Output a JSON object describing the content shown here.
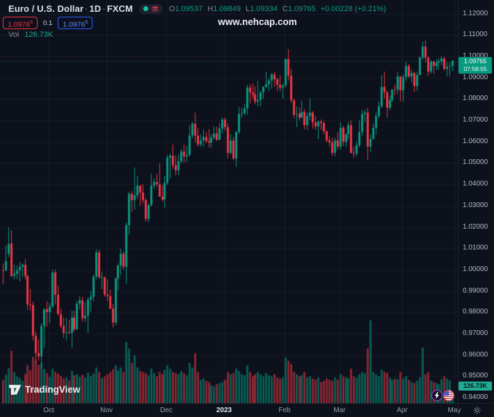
{
  "header": {
    "symbol_title": "Euro / U.S. Dollar",
    "separator": "·",
    "interval": "1D",
    "exchange": "FXCM",
    "ohlc": {
      "o_label": "O",
      "o": "1.09537",
      "h_label": "H",
      "h": "1.09849",
      "l_label": "L",
      "l": "1.09334",
      "c_label": "C",
      "c": "1.09765",
      "change": "+0.00228 (+0.21%)"
    },
    "sell_price": "1.0976",
    "sell_sup": "5",
    "spread": "0.1",
    "buy_price": "1.0976",
    "buy_sup": "6",
    "vol_label": "Vol",
    "vol_value": "126.73K"
  },
  "watermark": "www.nehcap.com",
  "logo_text": "TradingView",
  "axis": {
    "last_price": "1.09765",
    "countdown": "07:58:55",
    "volume_badge": "126.73K"
  },
  "colors": {
    "background": "#0d111c",
    "up": "#089981",
    "down": "#f23645",
    "buy_blue": "#2962ff",
    "sell_red": "#f23645",
    "grid": "rgba(140,150,170,0.08)",
    "badge_teal": "#089981",
    "vol_badge_teal": "#22ab94"
  },
  "chart_data": {
    "type": "candlestick",
    "title": "Euro / U.S. Dollar",
    "symbol": "EURUSD",
    "interval": "1D",
    "exchange": "FXCM",
    "legend_position": "top-left",
    "grid": true,
    "y_axis": {
      "min": 0.94,
      "max": 1.12,
      "step": 0.01,
      "format_decimals": 5
    },
    "x_axis": {
      "labels": [
        {
          "label": "Oct",
          "index": 17,
          "strong": false
        },
        {
          "label": "Nov",
          "index": 38,
          "strong": false
        },
        {
          "label": "Dec",
          "index": 60,
          "strong": false
        },
        {
          "label": "2023",
          "index": 81,
          "strong": true
        },
        {
          "label": "Feb",
          "index": 103,
          "strong": false
        },
        {
          "label": "Mar",
          "index": 123,
          "strong": false
        },
        {
          "label": "Apr",
          "index": 146,
          "strong": false
        },
        {
          "label": "May",
          "index": 165,
          "strong": false
        }
      ]
    },
    "current": {
      "price": 1.09765,
      "countdown": "07:58:55",
      "volume_k": 126.73
    },
    "volume_unit": "K",
    "candles_format": [
      "open",
      "high",
      "low",
      "close",
      "volume_k"
    ],
    "candles": [
      [
        0.9998,
        1.0029,
        0.993,
        0.9995,
        420
      ],
      [
        0.9995,
        1.0113,
        0.9993,
        1.004,
        510
      ],
      [
        1.0075,
        1.0198,
        1.0059,
        1.012,
        630
      ],
      [
        1.0122,
        1.0187,
        0.9964,
        0.997,
        940
      ],
      [
        0.997,
        1.0023,
        0.9955,
        0.9979,
        560
      ],
      [
        0.9979,
        1.0018,
        0.9954,
        0.9998,
        480
      ],
      [
        0.9998,
        1.0036,
        0.9944,
        1.0014,
        450
      ],
      [
        1.0014,
        1.0029,
        0.9964,
        1.0023,
        400
      ],
      [
        1.0023,
        1.005,
        0.9954,
        0.997,
        520
      ],
      [
        0.997,
        0.9975,
        0.9812,
        0.9838,
        680
      ],
      [
        0.9838,
        0.9907,
        0.9807,
        0.9835,
        590
      ],
      [
        0.9835,
        0.9851,
        0.9667,
        0.969,
        830
      ],
      [
        0.969,
        0.9709,
        0.9565,
        0.9608,
        760
      ],
      [
        0.9608,
        0.967,
        0.9571,
        0.9594,
        690
      ],
      [
        0.9594,
        0.975,
        0.9536,
        0.9735,
        720
      ],
      [
        0.9735,
        0.9816,
        0.9634,
        0.9815,
        610
      ],
      [
        0.9815,
        0.9853,
        0.9733,
        0.9802,
        540
      ],
      [
        0.9802,
        0.9844,
        0.9751,
        0.9826,
        470
      ],
      [
        0.9826,
        1.0,
        0.982,
        0.9986,
        620
      ],
      [
        0.9986,
        0.9999,
        0.9835,
        0.9884,
        560
      ],
      [
        0.9884,
        0.9926,
        0.9787,
        0.9792,
        530
      ],
      [
        0.9792,
        0.9817,
        0.9726,
        0.9737,
        490
      ],
      [
        0.9737,
        0.9774,
        0.9681,
        0.9703,
        440
      ],
      [
        0.9703,
        0.9773,
        0.967,
        0.9706,
        460
      ],
      [
        0.9706,
        0.9766,
        0.9699,
        0.9702,
        410
      ],
      [
        0.9702,
        0.9807,
        0.9632,
        0.9775,
        580
      ],
      [
        0.9775,
        0.9807,
        0.9709,
        0.9721,
        500
      ],
      [
        0.9721,
        0.9852,
        0.9717,
        0.984,
        520
      ],
      [
        0.984,
        0.9875,
        0.9813,
        0.9857,
        470
      ],
      [
        0.9857,
        0.9873,
        0.9757,
        0.9772,
        510
      ],
      [
        0.9772,
        0.9845,
        0.9755,
        0.9785,
        460
      ],
      [
        0.9785,
        0.987,
        0.9705,
        0.9861,
        550
      ],
      [
        0.9861,
        0.9899,
        0.9806,
        0.9873,
        480
      ],
      [
        0.9873,
        0.9976,
        0.985,
        0.9967,
        530
      ],
      [
        0.9967,
        1.0093,
        0.9952,
        1.0082,
        640
      ],
      [
        1.0082,
        1.0094,
        0.9958,
        0.9965,
        560
      ],
      [
        0.9965,
        0.9991,
        0.991,
        0.9965,
        450
      ],
      [
        0.9965,
        0.9968,
        0.9872,
        0.9882,
        480
      ],
      [
        0.9882,
        0.9954,
        0.9853,
        0.9875,
        520
      ],
      [
        0.9875,
        0.9905,
        0.9815,
        0.9818,
        560
      ],
      [
        0.9818,
        0.984,
        0.973,
        0.9751,
        610
      ],
      [
        0.9751,
        0.9965,
        0.9741,
        0.9957,
        680
      ],
      [
        0.9957,
        1.003,
        0.9903,
        1.002,
        590
      ],
      [
        1.002,
        1.0096,
        0.9972,
        1.0074,
        640
      ],
      [
        1.0074,
        1.0084,
        0.9998,
        1.0012,
        560
      ],
      [
        1.0012,
        1.0222,
        0.9936,
        1.0209,
        1100
      ],
      [
        1.0209,
        1.0364,
        1.0163,
        1.0354,
        980
      ],
      [
        1.0354,
        1.0369,
        1.0271,
        1.0325,
        720
      ],
      [
        1.0325,
        1.048,
        1.028,
        1.0349,
        860
      ],
      [
        1.0349,
        1.0439,
        1.033,
        1.0393,
        640
      ],
      [
        1.0393,
        1.0395,
        1.0301,
        1.0362,
        580
      ],
      [
        1.0362,
        1.0402,
        1.031,
        1.0325,
        560
      ],
      [
        1.0325,
        1.0334,
        1.0223,
        1.0239,
        540
      ],
      [
        1.0239,
        1.031,
        1.0222,
        1.0303,
        500
      ],
      [
        1.0303,
        1.0448,
        1.0296,
        1.0395,
        620
      ],
      [
        1.0395,
        1.0428,
        1.0382,
        1.041,
        540
      ],
      [
        1.041,
        1.0448,
        1.0387,
        1.0402,
        480
      ],
      [
        1.0402,
        1.0497,
        1.034,
        1.0343,
        560
      ],
      [
        1.0343,
        1.0394,
        1.0319,
        1.0328,
        520
      ],
      [
        1.0328,
        1.044,
        1.029,
        1.0406,
        600
      ],
      [
        1.0406,
        1.0539,
        1.04,
        1.0525,
        680
      ],
      [
        1.0525,
        1.0545,
        1.0428,
        1.0535,
        620
      ],
      [
        1.0535,
        1.0585,
        1.047,
        1.049,
        560
      ],
      [
        1.049,
        1.0534,
        1.0442,
        1.0467,
        540
      ],
      [
        1.0467,
        1.0541,
        1.0443,
        1.0507,
        520
      ],
      [
        1.0507,
        1.0567,
        1.0499,
        1.0555,
        580
      ],
      [
        1.0555,
        1.0587,
        1.0503,
        1.0531,
        540
      ],
      [
        1.0531,
        1.058,
        1.0506,
        1.0537,
        500
      ],
      [
        1.0537,
        1.0673,
        1.053,
        1.063,
        720
      ],
      [
        1.063,
        1.0695,
        1.0618,
        1.0683,
        640
      ],
      [
        1.0683,
        1.0735,
        1.0594,
        1.0628,
        900
      ],
      [
        1.0628,
        1.0664,
        1.0575,
        1.0585,
        560
      ],
      [
        1.0585,
        1.0635,
        1.0575,
        1.0607,
        420
      ],
      [
        1.0607,
        1.0659,
        1.0576,
        1.0622,
        440
      ],
      [
        1.0622,
        1.0644,
        1.0591,
        1.0604,
        400
      ],
      [
        1.0604,
        1.0657,
        1.0572,
        1.0595,
        380
      ],
      [
        1.0595,
        1.0636,
        1.0572,
        1.0618,
        320
      ],
      [
        1.0618,
        1.067,
        1.0609,
        1.064,
        300
      ],
      [
        1.064,
        1.0672,
        1.0604,
        1.061,
        340
      ],
      [
        1.061,
        1.0688,
        1.0608,
        1.0661,
        360
      ],
      [
        1.0661,
        1.0714,
        1.0638,
        1.0705,
        380
      ],
      [
        1.0705,
        1.0713,
        1.065,
        1.0668,
        420
      ],
      [
        1.0668,
        1.0683,
        1.0519,
        1.0546,
        560
      ],
      [
        1.0546,
        1.0635,
        1.0542,
        1.0605,
        520
      ],
      [
        1.0605,
        1.0621,
        1.0515,
        1.0522,
        540
      ],
      [
        1.0522,
        1.0648,
        1.0483,
        1.0645,
        620
      ],
      [
        1.0645,
        1.0761,
        1.0634,
        1.073,
        580
      ],
      [
        1.073,
        1.0758,
        1.0711,
        1.0734,
        520
      ],
      [
        1.0734,
        1.0776,
        1.0724,
        1.0756,
        500
      ],
      [
        1.0756,
        1.0868,
        1.0729,
        1.0852,
        680
      ],
      [
        1.0852,
        1.0869,
        1.0778,
        1.083,
        560
      ],
      [
        1.083,
        1.0874,
        1.0802,
        1.0822,
        480
      ],
      [
        1.0822,
        1.086,
        1.0775,
        1.0788,
        520
      ],
      [
        1.0788,
        1.0887,
        1.0766,
        1.0794,
        560
      ],
      [
        1.0794,
        1.084,
        1.0766,
        1.0832,
        520
      ],
      [
        1.0832,
        1.086,
        1.0802,
        1.0856,
        480
      ],
      [
        1.0856,
        1.0927,
        1.0848,
        1.0871,
        540
      ],
      [
        1.0871,
        1.0898,
        1.0835,
        1.0886,
        500
      ],
      [
        1.0886,
        1.0923,
        1.0848,
        1.0916,
        480
      ],
      [
        1.0916,
        1.0929,
        1.0857,
        1.0892,
        520
      ],
      [
        1.0892,
        1.09,
        1.0838,
        1.0868,
        460
      ],
      [
        1.0868,
        1.0913,
        1.0838,
        1.0852,
        440
      ],
      [
        1.0852,
        1.0874,
        1.0802,
        1.0863,
        460
      ],
      [
        1.0863,
        1.0989,
        1.0851,
        1.0988,
        820
      ],
      [
        1.0988,
        1.1033,
        1.0885,
        1.091,
        760
      ],
      [
        1.091,
        1.094,
        1.078,
        1.0795,
        700
      ],
      [
        1.0795,
        1.08,
        1.0709,
        1.0727,
        560
      ],
      [
        1.0727,
        1.0766,
        1.0669,
        1.0728,
        520
      ],
      [
        1.0728,
        1.076,
        1.0702,
        1.0713,
        480
      ],
      [
        1.0713,
        1.0791,
        1.0711,
        1.0738,
        500
      ],
      [
        1.0738,
        1.0752,
        1.0656,
        1.0676,
        560
      ],
      [
        1.0676,
        1.0736,
        1.0656,
        1.0721,
        460
      ],
      [
        1.0721,
        1.0804,
        1.07,
        1.0737,
        480
      ],
      [
        1.0737,
        1.0743,
        1.066,
        1.069,
        440
      ],
      [
        1.069,
        1.0721,
        1.0655,
        1.0672,
        420
      ],
      [
        1.0672,
        1.07,
        1.0612,
        1.0694,
        460
      ],
      [
        1.0694,
        1.0705,
        1.0657,
        1.0687,
        380
      ],
      [
        1.0687,
        1.0697,
        1.0634,
        1.0648,
        400
      ],
      [
        1.0648,
        1.0656,
        1.0598,
        1.0605,
        440
      ],
      [
        1.0605,
        1.0625,
        1.0577,
        1.0595,
        420
      ],
      [
        1.0595,
        1.062,
        1.0536,
        1.0546,
        400
      ],
      [
        1.0546,
        1.062,
        1.0532,
        1.0607,
        460
      ],
      [
        1.0607,
        1.0645,
        1.0565,
        1.0577,
        420
      ],
      [
        1.0577,
        1.0691,
        1.0565,
        1.0666,
        520
      ],
      [
        1.0666,
        1.0673,
        1.0577,
        1.0598,
        480
      ],
      [
        1.0598,
        1.0638,
        1.0576,
        1.0634,
        460
      ],
      [
        1.0634,
        1.0694,
        1.0613,
        1.0678,
        440
      ],
      [
        1.0678,
        1.07,
        1.0542,
        1.0548,
        620
      ],
      [
        1.0548,
        1.0577,
        1.0524,
        1.0545,
        480
      ],
      [
        1.0545,
        1.06,
        1.053,
        1.0583,
        460
      ],
      [
        1.0583,
        1.0701,
        1.0575,
        1.0644,
        520
      ],
      [
        1.0644,
        1.0749,
        1.0629,
        1.0729,
        560
      ],
      [
        1.0729,
        1.075,
        1.069,
        1.0736,
        540
      ],
      [
        1.0736,
        1.076,
        1.0516,
        1.0577,
        980
      ],
      [
        1.0577,
        1.0635,
        1.0551,
        1.0611,
        1490
      ],
      [
        1.0611,
        1.0685,
        1.0611,
        1.0665,
        560
      ],
      [
        1.0665,
        1.0737,
        1.0632,
        1.072,
        520
      ],
      [
        1.072,
        1.0789,
        1.071,
        1.0766,
        480
      ],
      [
        1.0766,
        1.0912,
        1.0758,
        1.0857,
        600
      ],
      [
        1.0857,
        1.093,
        1.0803,
        1.083,
        560
      ],
      [
        1.083,
        1.084,
        1.0713,
        1.076,
        540
      ],
      [
        1.076,
        1.0814,
        1.0744,
        1.0796,
        460
      ],
      [
        1.0796,
        1.0848,
        1.0787,
        1.0845,
        420
      ],
      [
        1.0845,
        1.0867,
        1.0819,
        1.0843,
        440
      ],
      [
        1.0843,
        1.0926,
        1.0824,
        1.0905,
        430
      ],
      [
        1.0905,
        1.0909,
        1.0788,
        1.0839,
        560
      ],
      [
        1.0839,
        1.0915,
        1.0789,
        1.0902,
        440
      ],
      [
        1.0902,
        1.0973,
        1.0885,
        1.0954,
        480
      ],
      [
        1.0954,
        1.0963,
        1.0899,
        1.0906,
        420
      ],
      [
        1.0906,
        1.0938,
        1.0876,
        1.0921,
        380
      ],
      [
        1.0921,
        1.0927,
        1.0831,
        1.086,
        360
      ],
      [
        1.086,
        1.0929,
        1.0838,
        1.0913,
        400
      ],
      [
        1.0913,
        1.1,
        1.0911,
        1.0992,
        460
      ],
      [
        1.0992,
        1.1068,
        1.0983,
        1.1046,
        1000
      ],
      [
        1.1046,
        1.1076,
        1.0973,
        1.0994,
        520
      ],
      [
        1.0994,
        1.0999,
        1.0909,
        1.0927,
        560
      ],
      [
        1.0927,
        1.0983,
        1.0917,
        1.0973,
        400
      ],
      [
        1.0973,
        1.0979,
        1.0918,
        1.0954,
        380
      ],
      [
        1.0954,
        1.0984,
        1.0936,
        1.097,
        360
      ],
      [
        1.097,
        1.099,
        1.0938,
        1.0977,
        340
      ],
      [
        1.0977,
        1.1004,
        1.096,
        1.099,
        430
      ],
      [
        1.099,
        1.0996,
        1.0932,
        1.0943,
        480
      ],
      [
        1.0943,
        1.0973,
        1.0905,
        1.0951,
        440
      ],
      [
        1.0951,
        1.0972,
        1.0908,
        1.0954,
        410
      ],
      [
        1.09537,
        1.09849,
        1.09334,
        1.09765,
        126.73
      ]
    ]
  }
}
